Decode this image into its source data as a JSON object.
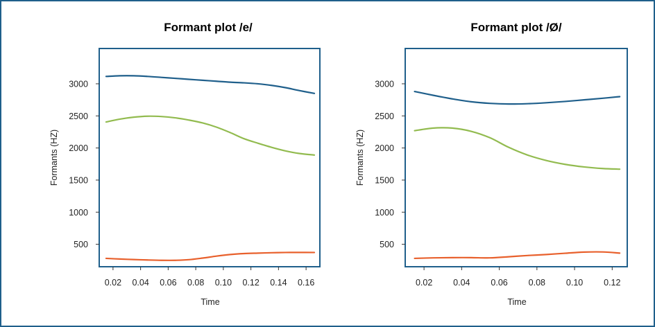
{
  "chart_data": [
    {
      "type": "line",
      "title": "Formant plot /e/",
      "xlabel": "Time",
      "ylabel": "Formants (HZ)",
      "xlim": [
        0.01,
        0.17
      ],
      "ylim": [
        150,
        3550
      ],
      "xticks": [
        0.02,
        0.04,
        0.06,
        0.08,
        0.1,
        0.12,
        0.14,
        0.16
      ],
      "xtick_labels": [
        "0.02",
        "0.04",
        "0.06",
        "0.08",
        "0.10",
        "0.12",
        "0.14",
        "0.16"
      ],
      "yticks": [
        500,
        1000,
        1500,
        2000,
        2500,
        3000
      ],
      "ytick_labels": [
        "500",
        "1000",
        "1500",
        "2000",
        "2500",
        "3000"
      ],
      "grid": false,
      "series": [
        {
          "color": "#1f5f8b",
          "x": [
            0.015,
            0.025,
            0.035,
            0.045,
            0.055,
            0.065,
            0.075,
            0.085,
            0.095,
            0.105,
            0.115,
            0.125,
            0.135,
            0.145,
            0.155,
            0.166
          ],
          "y": [
            3115,
            3125,
            3125,
            3115,
            3100,
            3085,
            3070,
            3055,
            3040,
            3025,
            3015,
            3000,
            2975,
            2940,
            2895,
            2850
          ]
        },
        {
          "color": "#92bb4f",
          "x": [
            0.015,
            0.025,
            0.035,
            0.045,
            0.055,
            0.065,
            0.075,
            0.085,
            0.095,
            0.105,
            0.115,
            0.125,
            0.135,
            0.145,
            0.155,
            0.166
          ],
          "y": [
            2405,
            2450,
            2480,
            2495,
            2490,
            2470,
            2435,
            2390,
            2325,
            2240,
            2145,
            2075,
            2010,
            1955,
            1915,
            1890
          ]
        },
        {
          "color": "#e8602c",
          "x": [
            0.015,
            0.025,
            0.035,
            0.045,
            0.055,
            0.065,
            0.075,
            0.085,
            0.095,
            0.105,
            0.115,
            0.125,
            0.135,
            0.145,
            0.155,
            0.166
          ],
          "y": [
            280,
            270,
            262,
            255,
            250,
            250,
            260,
            285,
            315,
            340,
            355,
            362,
            368,
            372,
            373,
            372
          ]
        }
      ]
    },
    {
      "type": "line",
      "title": "Formant plot /Ø/",
      "xlabel": "Time",
      "ylabel": "Formants (HZ)",
      "xlim": [
        0.01,
        0.128
      ],
      "ylim": [
        150,
        3550
      ],
      "xticks": [
        0.02,
        0.04,
        0.06,
        0.08,
        0.1,
        0.12
      ],
      "xtick_labels": [
        "0.02",
        "0.04",
        "0.06",
        "0.08",
        "0.10",
        "0.12"
      ],
      "yticks": [
        500,
        1000,
        1500,
        2000,
        2500,
        3000
      ],
      "ytick_labels": [
        "500",
        "1000",
        "1500",
        "2000",
        "2500",
        "3000"
      ],
      "grid": false,
      "series": [
        {
          "color": "#1f5f8b",
          "x": [
            0.015,
            0.025,
            0.035,
            0.045,
            0.055,
            0.065,
            0.075,
            0.085,
            0.095,
            0.105,
            0.115,
            0.124
          ],
          "y": [
            2880,
            2820,
            2765,
            2720,
            2695,
            2685,
            2690,
            2705,
            2725,
            2750,
            2775,
            2800
          ]
        },
        {
          "color": "#92bb4f",
          "x": [
            0.015,
            0.025,
            0.035,
            0.045,
            0.055,
            0.065,
            0.075,
            0.085,
            0.095,
            0.105,
            0.115,
            0.124
          ],
          "y": [
            2270,
            2310,
            2310,
            2260,
            2160,
            2010,
            1890,
            1805,
            1745,
            1705,
            1680,
            1670
          ]
        },
        {
          "color": "#e8602c",
          "x": [
            0.015,
            0.025,
            0.035,
            0.045,
            0.055,
            0.065,
            0.075,
            0.085,
            0.095,
            0.105,
            0.115,
            0.124
          ],
          "y": [
            280,
            288,
            292,
            292,
            288,
            305,
            325,
            340,
            360,
            378,
            380,
            362
          ]
        }
      ]
    }
  ]
}
